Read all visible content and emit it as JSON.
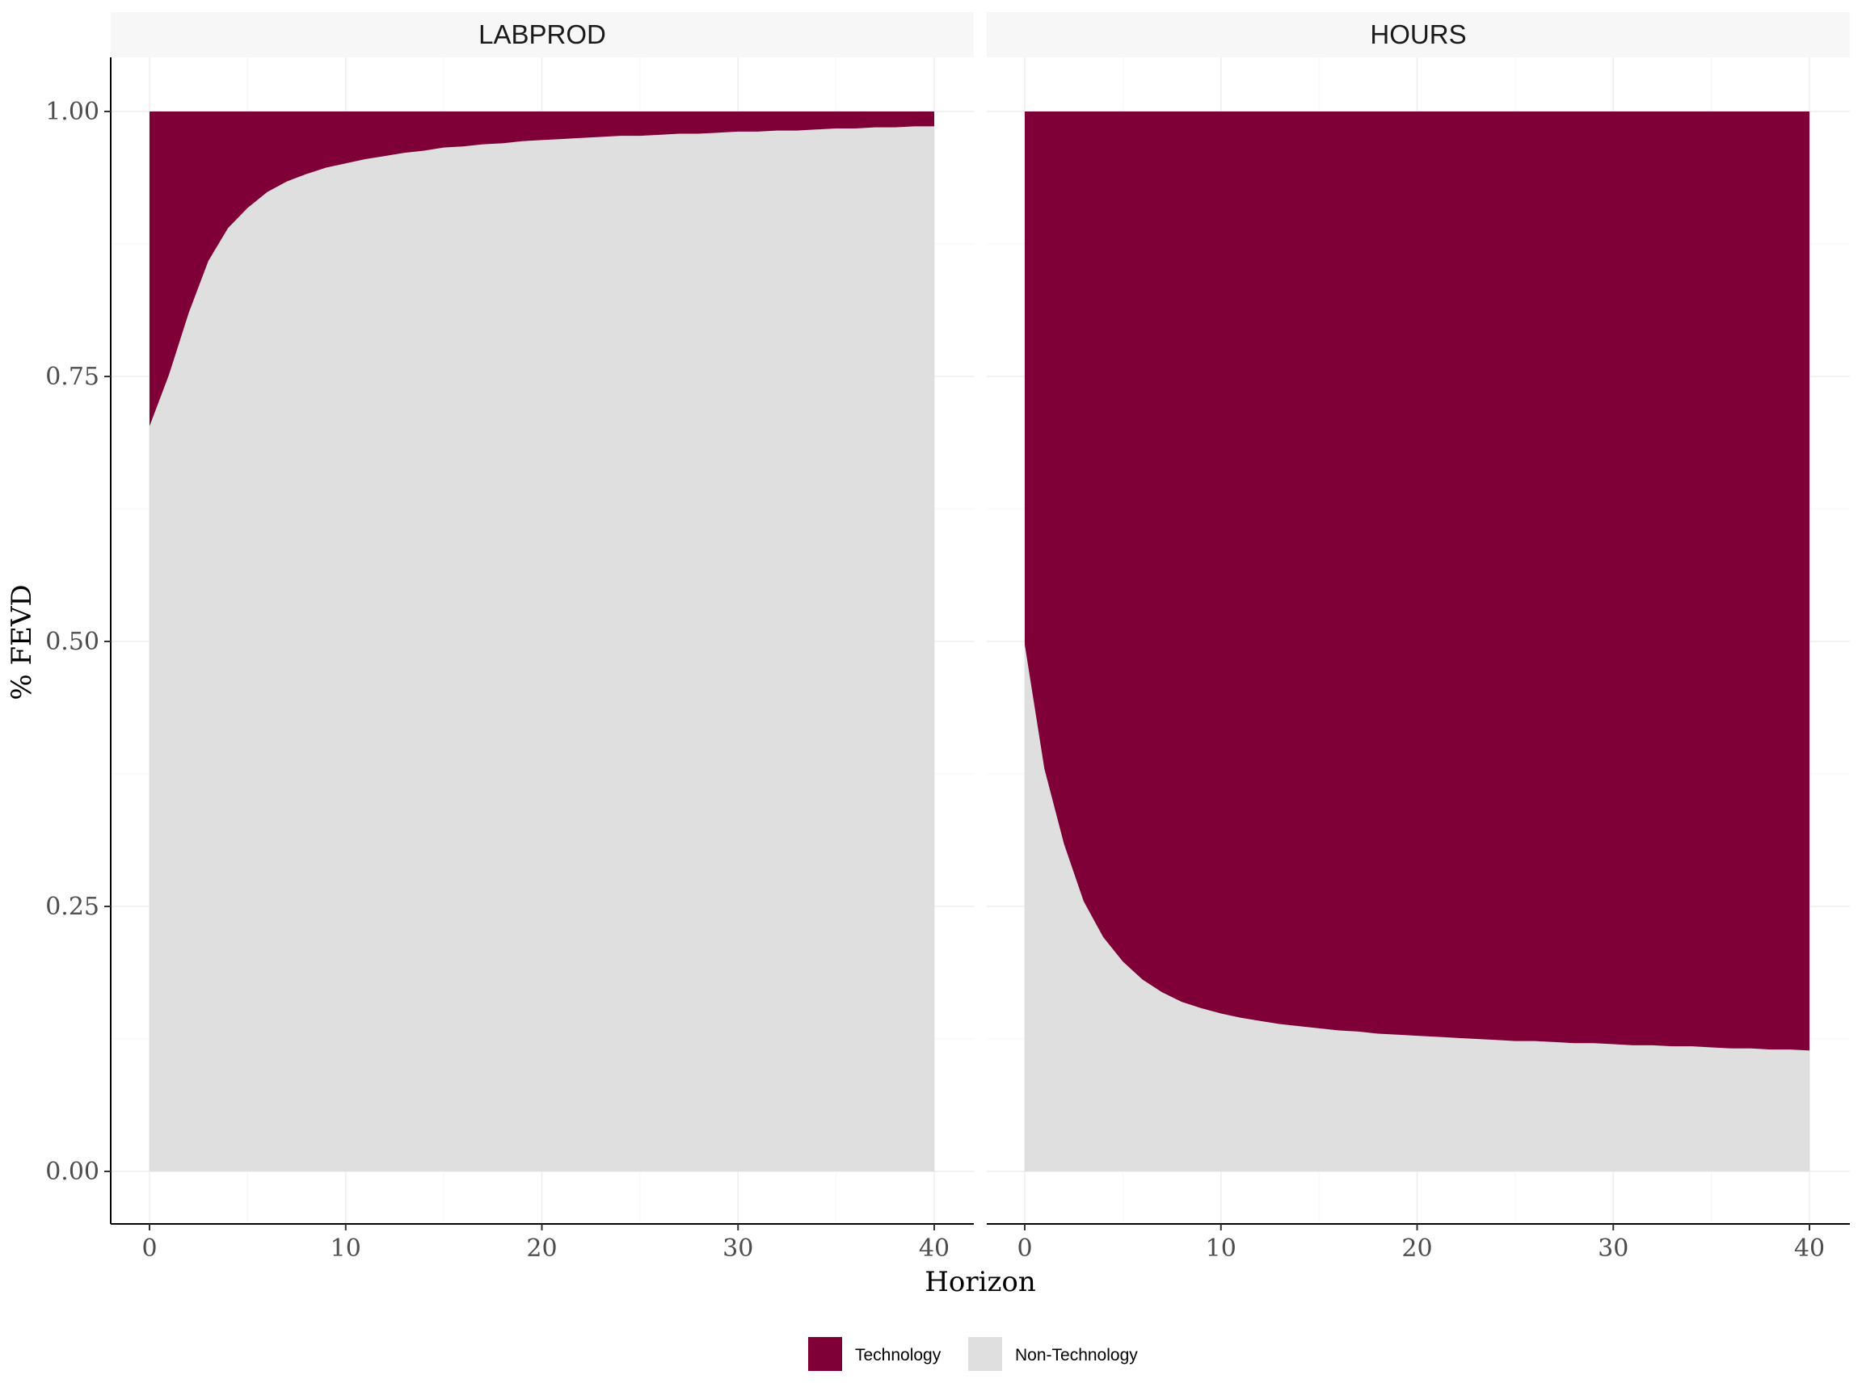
{
  "chart_data": {
    "type": "area",
    "stacked": true,
    "ylabel": "% FEVD",
    "xlabel": "Horizon",
    "xlim": [
      0,
      40
    ],
    "ylim": [
      0,
      1
    ],
    "x_ticks": [
      "0",
      "10",
      "20",
      "30",
      "40"
    ],
    "y_ticks": [
      "0.00",
      "0.25",
      "0.50",
      "0.75",
      "1.00"
    ],
    "legend": {
      "placement": "bottom",
      "entries": [
        {
          "name": "Technology",
          "color": "#7f0037"
        },
        {
          "name": "Non-Technology",
          "color": "#dfdfdf"
        }
      ]
    },
    "grid": true,
    "x": [
      0,
      1,
      2,
      3,
      4,
      5,
      6,
      7,
      8,
      9,
      10,
      11,
      12,
      13,
      14,
      15,
      16,
      17,
      18,
      19,
      20,
      21,
      22,
      23,
      24,
      25,
      26,
      27,
      28,
      29,
      30,
      31,
      32,
      33,
      34,
      35,
      36,
      37,
      38,
      39,
      40
    ],
    "panels": [
      {
        "title": "LABPROD",
        "series": [
          {
            "name": "Non-Technology",
            "values": [
              0.703,
              0.752,
              0.81,
              0.859,
              0.89,
              0.909,
              0.924,
              0.934,
              0.941,
              0.947,
              0.951,
              0.955,
              0.958,
              0.961,
              0.963,
              0.966,
              0.967,
              0.969,
              0.97,
              0.972,
              0.973,
              0.974,
              0.975,
              0.976,
              0.977,
              0.977,
              0.978,
              0.979,
              0.979,
              0.98,
              0.981,
              0.981,
              0.982,
              0.982,
              0.983,
              0.984,
              0.984,
              0.985,
              0.985,
              0.986,
              0.986
            ]
          },
          {
            "name": "Technology",
            "values": [
              0.297,
              0.248,
              0.19,
              0.141,
              0.11,
              0.091,
              0.076,
              0.066,
              0.059,
              0.053,
              0.049,
              0.045,
              0.042,
              0.039,
              0.037,
              0.034,
              0.033,
              0.031,
              0.03,
              0.028,
              0.027,
              0.026,
              0.025,
              0.024,
              0.023,
              0.023,
              0.022,
              0.021,
              0.021,
              0.02,
              0.019,
              0.019,
              0.018,
              0.018,
              0.017,
              0.016,
              0.016,
              0.015,
              0.015,
              0.014,
              0.014
            ]
          }
        ]
      },
      {
        "title": "HOURS",
        "series": [
          {
            "name": "Non-Technology",
            "values": [
              0.497,
              0.38,
              0.309,
              0.255,
              0.221,
              0.198,
              0.181,
              0.169,
              0.16,
              0.154,
              0.149,
              0.145,
              0.142,
              0.139,
              0.137,
              0.135,
              0.133,
              0.132,
              0.13,
              0.129,
              0.128,
              0.127,
              0.126,
              0.125,
              0.124,
              0.123,
              0.123,
              0.122,
              0.121,
              0.121,
              0.12,
              0.119,
              0.119,
              0.118,
              0.118,
              0.117,
              0.116,
              0.116,
              0.115,
              0.115,
              0.114
            ]
          },
          {
            "name": "Technology",
            "values": [
              0.503,
              0.62,
              0.691,
              0.745,
              0.779,
              0.802,
              0.819,
              0.831,
              0.84,
              0.846,
              0.851,
              0.855,
              0.858,
              0.861,
              0.863,
              0.865,
              0.867,
              0.868,
              0.87,
              0.871,
              0.872,
              0.873,
              0.874,
              0.875,
              0.876,
              0.877,
              0.877,
              0.878,
              0.879,
              0.879,
              0.88,
              0.881,
              0.881,
              0.882,
              0.882,
              0.883,
              0.884,
              0.884,
              0.885,
              0.885,
              0.886
            ]
          }
        ]
      }
    ]
  }
}
